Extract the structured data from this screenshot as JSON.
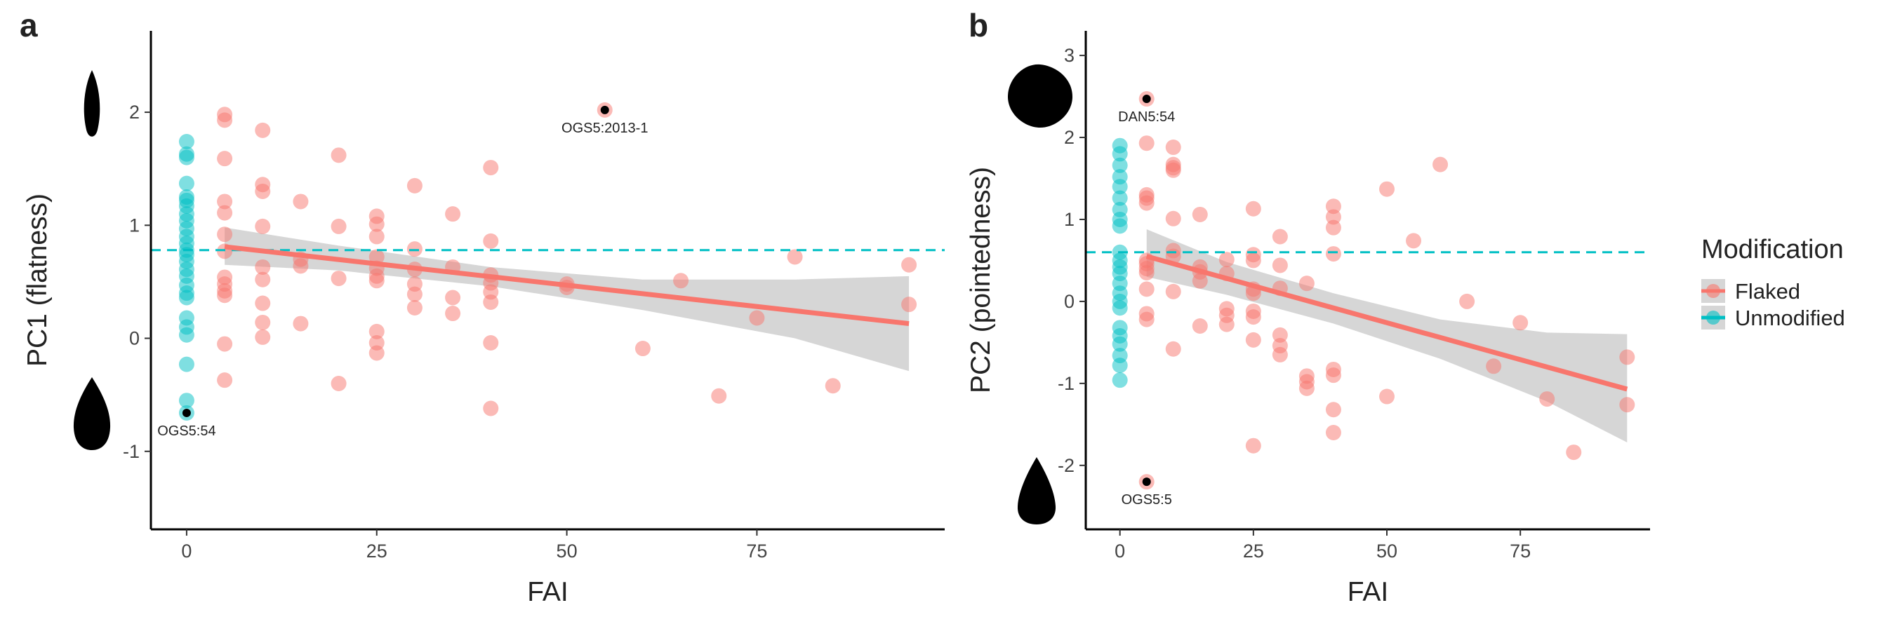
{
  "chart_data": [
    {
      "type": "scatter",
      "panel": "a",
      "xlabel": "FAI",
      "ylabel": "PC1 (flatness)",
      "xlim": [
        -4.7,
        99.7
      ],
      "ylim": [
        -1.69,
        2.72
      ],
      "xticks": [
        0,
        25,
        50,
        75
      ],
      "yticks": [
        -1,
        0,
        1,
        2
      ],
      "hline": 0.78,
      "fit": {
        "color": "#F8766D",
        "x": [
          5,
          95
        ],
        "values": [
          0.81,
          0.13
        ]
      },
      "ci": {
        "x": [
          5,
          20,
          40,
          60,
          80,
          95
        ],
        "upper": [
          0.98,
          0.82,
          0.63,
          0.52,
          0.52,
          0.55
        ],
        "lower": [
          0.65,
          0.6,
          0.46,
          0.25,
          0.0,
          -0.29
        ]
      },
      "series": [
        {
          "color": "#F8766D",
          "x": [
            5,
            5,
            5,
            5,
            5,
            5,
            5,
            5,
            5,
            5,
            5,
            5,
            5,
            10,
            10,
            10,
            10,
            10,
            10,
            10,
            10,
            10,
            15,
            15,
            15,
            15,
            20,
            20,
            20,
            20,
            25,
            25,
            25,
            25,
            25,
            25,
            25,
            25,
            25,
            25,
            30,
            30,
            30,
            30,
            30,
            30,
            35,
            35,
            35,
            35,
            40,
            40,
            40,
            40,
            40,
            40,
            40,
            40,
            50,
            50,
            60,
            65,
            70,
            75,
            80,
            85,
            95,
            95
          ],
          "values": [
            1.98,
            1.93,
            1.59,
            1.21,
            1.11,
            0.92,
            0.77,
            0.54,
            0.48,
            0.42,
            0.38,
            -0.05,
            -0.37,
            1.84,
            1.36,
            1.3,
            0.99,
            0.63,
            0.52,
            0.31,
            0.14,
            0.01,
            1.21,
            0.7,
            0.64,
            0.13,
            1.62,
            0.99,
            0.53,
            -0.4,
            1.08,
            1.01,
            0.9,
            0.72,
            0.62,
            0.55,
            0.51,
            0.06,
            -0.04,
            -0.13,
            1.35,
            0.79,
            0.61,
            0.48,
            0.39,
            0.27,
            1.1,
            0.63,
            0.36,
            0.22,
            1.51,
            0.86,
            0.56,
            0.49,
            0.41,
            0.32,
            -0.04,
            -0.62,
            0.48,
            0.45,
            -0.09,
            0.51,
            -0.51,
            0.18,
            0.72,
            -0.42,
            0.65,
            0.3
          ]
        },
        {
          "color": "#00BFC4",
          "x": [
            0,
            0,
            0,
            0,
            0,
            0,
            0,
            0,
            0,
            0,
            0,
            0,
            0,
            0,
            0,
            0,
            0,
            0,
            0,
            0,
            0,
            0,
            0,
            0,
            0
          ],
          "values": [
            1.74,
            1.63,
            1.6,
            1.37,
            1.25,
            1.22,
            1.17,
            1.1,
            1.04,
            0.97,
            0.9,
            0.84,
            0.78,
            0.74,
            0.68,
            0.61,
            0.55,
            0.47,
            0.4,
            0.36,
            0.18,
            0.1,
            0.03,
            -0.23,
            -0.55
          ]
        }
      ],
      "annotations": [
        {
          "label": "OGS5:2013-1",
          "x": 55,
          "y": 2.02,
          "color": "#F8766D"
        },
        {
          "label": "OGS5:54",
          "x": 0,
          "y": -0.66,
          "color": "#00BFC4"
        }
      ]
    },
    {
      "type": "scatter",
      "panel": "b",
      "xlabel": "FAI",
      "ylabel": "PC2 (pointedness)",
      "xlim": [
        -6.4,
        99.3
      ],
      "ylim": [
        -2.78,
        3.3
      ],
      "xticks": [
        0,
        25,
        50,
        75
      ],
      "yticks": [
        -2,
        -1,
        0,
        1,
        2,
        3
      ],
      "hline": 0.6,
      "fit": {
        "color": "#F8766D",
        "x": [
          5,
          95
        ],
        "values": [
          0.55,
          -1.07
        ]
      },
      "ci": {
        "x": [
          5,
          20,
          40,
          60,
          80,
          95
        ],
        "upper": [
          0.88,
          0.48,
          0.1,
          -0.22,
          -0.38,
          -0.4
        ],
        "lower": [
          0.3,
          0.08,
          -0.27,
          -0.7,
          -1.22,
          -1.72
        ]
      },
      "legend_title": "Modification",
      "series": [
        {
          "name": "Flaked",
          "color": "#F8766D",
          "x": [
            5,
            5,
            5,
            5,
            5,
            5,
            5,
            5,
            5,
            5,
            5,
            10,
            10,
            10,
            10,
            10,
            10,
            10,
            10,
            10,
            15,
            15,
            15,
            15,
            15,
            20,
            20,
            20,
            20,
            20,
            25,
            25,
            25,
            25,
            25,
            25,
            25,
            25,
            25,
            30,
            30,
            30,
            30,
            30,
            30,
            35,
            35,
            35,
            35,
            40,
            40,
            40,
            40,
            40,
            40,
            40,
            40,
            50,
            50,
            55,
            60,
            65,
            70,
            75,
            80,
            85,
            95,
            95
          ],
          "values": [
            1.93,
            1.3,
            1.26,
            1.2,
            0.5,
            0.46,
            0.4,
            0.35,
            0.15,
            -0.15,
            -0.22,
            1.88,
            1.67,
            1.63,
            1.6,
            1.01,
            0.62,
            0.55,
            0.12,
            -0.58,
            1.06,
            0.42,
            0.36,
            0.25,
            -0.3,
            0.51,
            0.34,
            -0.09,
            -0.17,
            -0.28,
            1.13,
            0.57,
            0.5,
            0.15,
            0.1,
            -0.12,
            -0.19,
            -0.47,
            -1.76,
            0.79,
            0.44,
            0.16,
            -0.41,
            -0.54,
            -0.65,
            0.22,
            -0.91,
            -0.98,
            -1.06,
            1.16,
            1.03,
            0.9,
            0.58,
            -0.83,
            -0.9,
            -1.32,
            -1.6,
            1.37,
            -1.16,
            0.74,
            1.67,
            0.0,
            -0.79,
            -0.26,
            -1.19,
            -1.84,
            -0.68,
            -1.26
          ]
        },
        {
          "name": "Unmodified",
          "color": "#00BFC4",
          "x": [
            0,
            0,
            0,
            0,
            0,
            0,
            0,
            0,
            0,
            0,
            0,
            0,
            0,
            0,
            0,
            0,
            0,
            0,
            0,
            0,
            0,
            0,
            0
          ],
          "values": [
            1.9,
            1.8,
            1.66,
            1.52,
            1.4,
            1.26,
            1.12,
            1.0,
            0.92,
            0.6,
            0.5,
            0.42,
            0.34,
            0.22,
            0.1,
            0.0,
            -0.08,
            -0.32,
            -0.42,
            -0.52,
            -0.66,
            -0.78,
            -0.96
          ]
        }
      ],
      "annotations": [
        {
          "label": "DAN5:54",
          "x": 5,
          "y": 2.47,
          "color": "#F8766D"
        },
        {
          "label": "OGS5:5",
          "x": 5,
          "y": -2.2,
          "color": "#F8766D"
        }
      ]
    }
  ]
}
